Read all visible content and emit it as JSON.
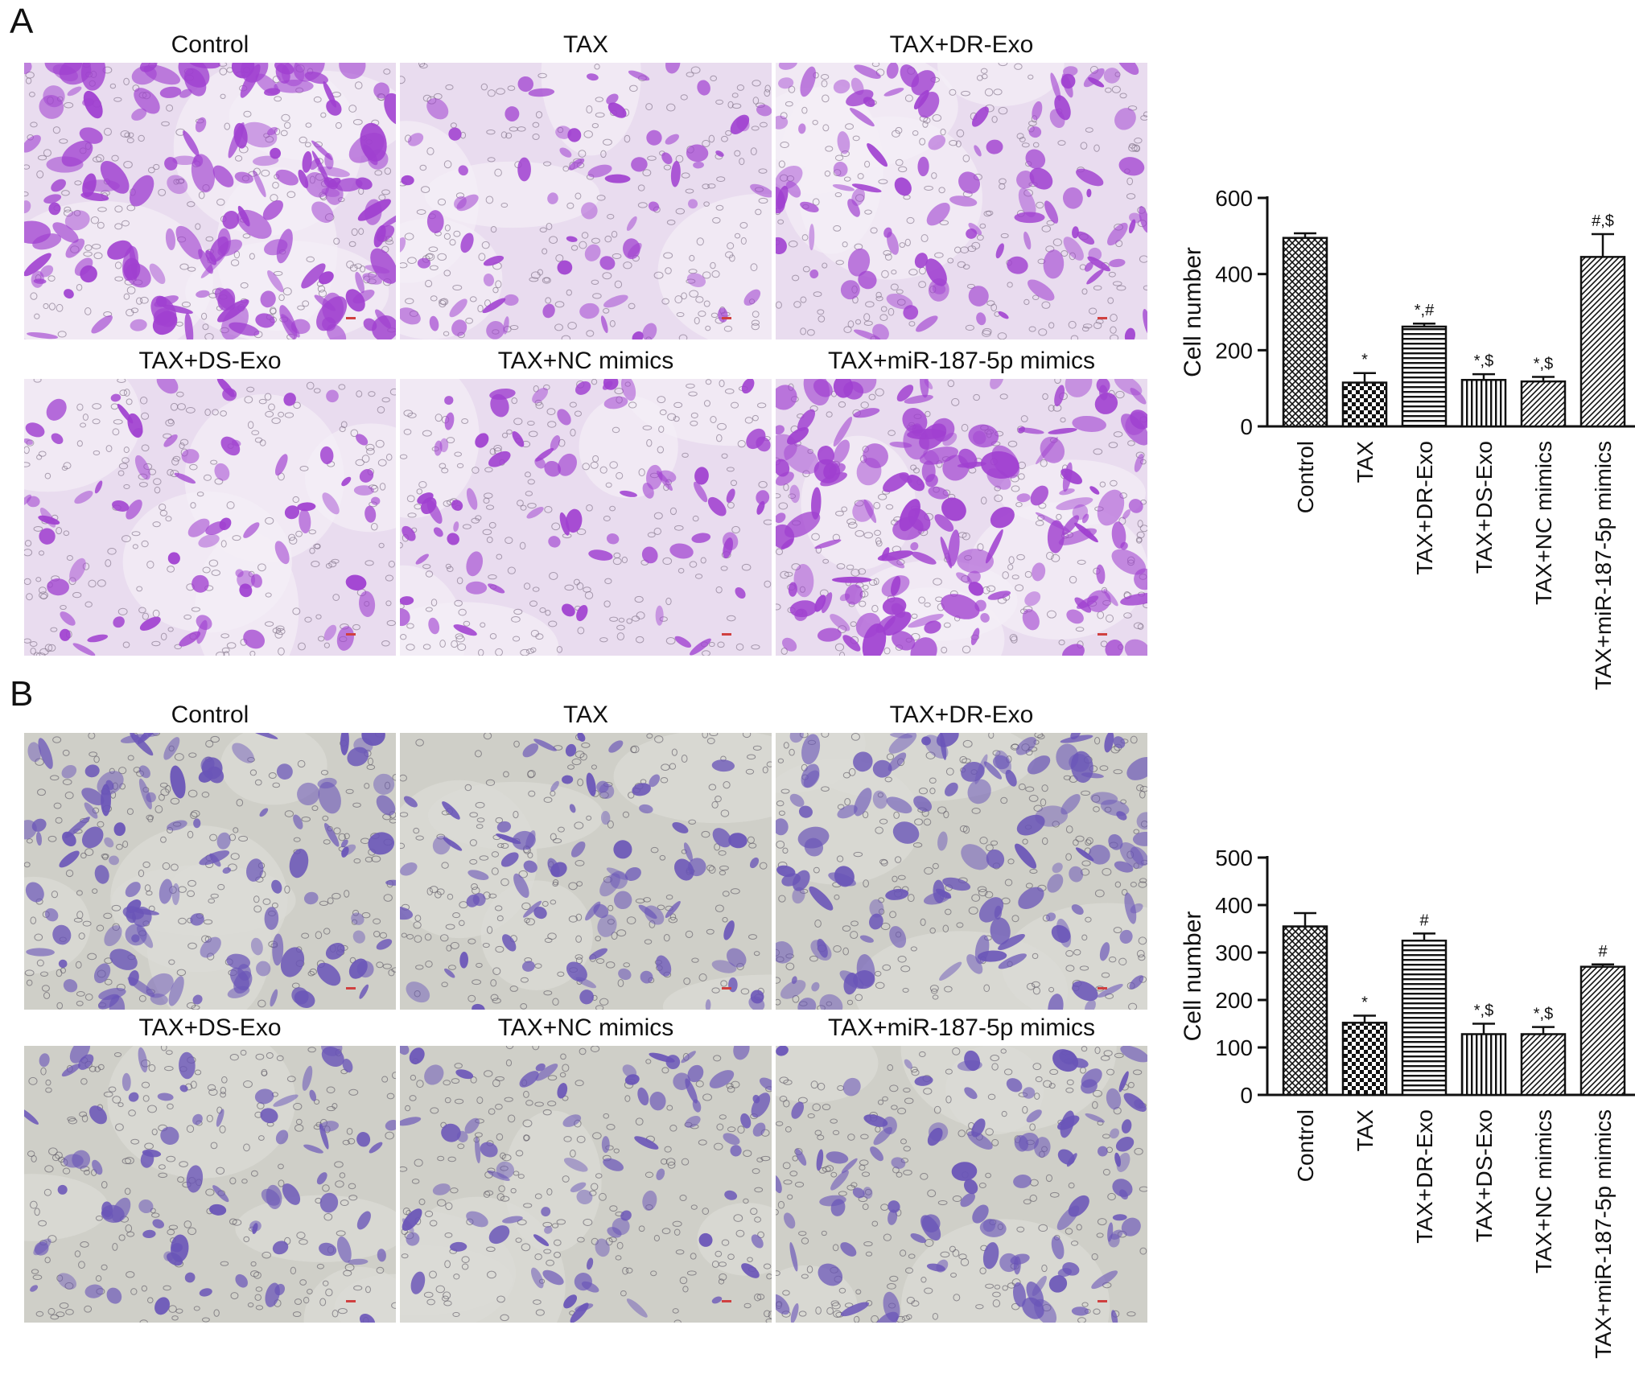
{
  "panels": [
    {
      "letter": "A",
      "image_labels": [
        "Control",
        "TAX",
        "TAX+DR-Exo",
        "TAX+DS-Exo",
        "TAX+NC mimics",
        "TAX+miR-187-5p mimics"
      ]
    },
    {
      "letter": "B",
      "image_labels": [
        "Control",
        "TAX",
        "TAX+DR-Exo",
        "TAX+DS-Exo",
        "TAX+NC mimics",
        "TAX+miR-187-5p mimics"
      ]
    }
  ],
  "stain_colors": {
    "A": "#a040d0",
    "B": "#6a55b8"
  },
  "chart_data": [
    {
      "type": "bar",
      "title": "",
      "xlabel": "",
      "ylabel": "Cell number",
      "ylim": [
        0,
        600
      ],
      "yticks": [
        0,
        200,
        400,
        600
      ],
      "categories": [
        "Control",
        "TAX",
        "TAX+DR-Exo",
        "TAX+DS-Exo",
        "TAX+NC mimics",
        "TAX+miR-187-5p mimics"
      ],
      "values": [
        495,
        115,
        262,
        122,
        118,
        445
      ],
      "errors": [
        12,
        25,
        8,
        15,
        12,
        60
      ],
      "annotations": [
        "",
        "*",
        "*,#",
        "*,$",
        "*,$",
        "#,$"
      ],
      "patterns": [
        "crosshatch",
        "checker",
        "horizontal",
        "vertical",
        "diagonal",
        "diagonal"
      ],
      "grid": false,
      "legend": "none"
    },
    {
      "type": "bar",
      "title": "",
      "xlabel": "",
      "ylabel": "Cell number",
      "ylim": [
        0,
        500
      ],
      "yticks": [
        0,
        100,
        200,
        300,
        400,
        500
      ],
      "categories": [
        "Control",
        "TAX",
        "TAX+DR-Exo",
        "TAX+DS-Exo",
        "TAX+NC mimics",
        "TAX+miR-187-5p mimics"
      ],
      "values": [
        355,
        152,
        325,
        128,
        128,
        270
      ],
      "errors": [
        28,
        15,
        15,
        22,
        15,
        5
      ],
      "annotations": [
        "",
        "*",
        "#",
        "*,$",
        "*,$",
        "#"
      ],
      "patterns": [
        "crosshatch",
        "checker",
        "horizontal",
        "vertical",
        "diagonal",
        "diagonal"
      ],
      "grid": false,
      "legend": "none"
    }
  ]
}
